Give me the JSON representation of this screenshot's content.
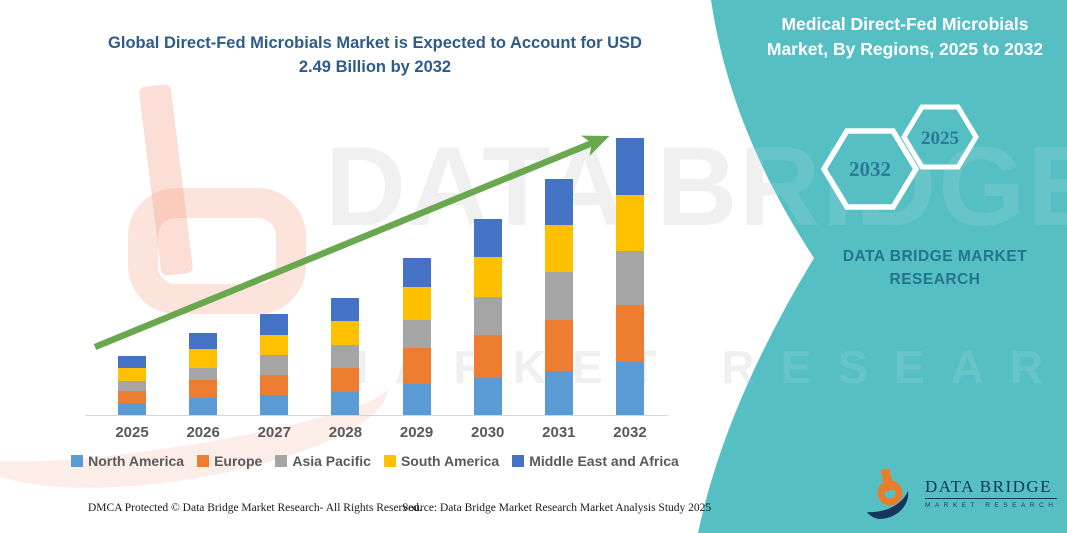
{
  "chart_data": {
    "type": "bar",
    "stacked": true,
    "title": "Global Direct-Fed Microbials Market is Expected to Account for USD 2.49 Billion by 2032",
    "unit": "USD Billion",
    "categories": [
      "2025",
      "2026",
      "2027",
      "2028",
      "2029",
      "2030",
      "2031",
      "2032"
    ],
    "series": [
      {
        "name": "North America",
        "color": "#5B9BD5",
        "values": [
          0.11,
          0.15,
          0.18,
          0.21,
          0.28,
          0.33,
          0.4,
          0.48
        ]
      },
      {
        "name": "Europe",
        "color": "#ED7D31",
        "values": [
          0.11,
          0.16,
          0.18,
          0.22,
          0.32,
          0.39,
          0.46,
          0.51
        ]
      },
      {
        "name": "Asia Pacific",
        "color": "#A5A5A5",
        "values": [
          0.09,
          0.11,
          0.18,
          0.21,
          0.25,
          0.34,
          0.43,
          0.49
        ]
      },
      {
        "name": "South America",
        "color": "#FFC000",
        "values": [
          0.12,
          0.17,
          0.18,
          0.22,
          0.3,
          0.36,
          0.42,
          0.5
        ]
      },
      {
        "name": "Middle East and Africa",
        "color": "#4472C4",
        "values": [
          0.11,
          0.14,
          0.19,
          0.21,
          0.26,
          0.34,
          0.41,
          0.51
        ]
      }
    ],
    "totals": [
      0.54,
      0.73,
      0.91,
      1.07,
      1.41,
      1.76,
      2.12,
      2.49
    ],
    "ylim": [
      0,
      2.6
    ],
    "y_axis_visible": false,
    "gridlines": false,
    "legend_position": "bottom",
    "trend_arrow": true,
    "trend_arrow_color": "#69A84F"
  },
  "right_panel": {
    "title": "Medical Direct-Fed Microbials Market, By Regions, 2025 to 2032",
    "hex_large_label": "2032",
    "hex_small_label": "2025",
    "brand_line1": "DATA BRIDGE MARKET",
    "brand_line2": "RESEARCH",
    "panel_color": "#56BFC4"
  },
  "logo": {
    "name": "DATA BRIDGE",
    "tagline": "MARKET RESEARCH"
  },
  "watermark": {
    "line1": "DATA BRIDGE",
    "line2": "MARKET RESEARCH"
  },
  "footer": {
    "dmca": "DMCA Protected © Data Bridge Market Research-  All Rights Reserved.",
    "source": "Source: Data Bridge Market Research  Market Analysis Study 2025"
  }
}
